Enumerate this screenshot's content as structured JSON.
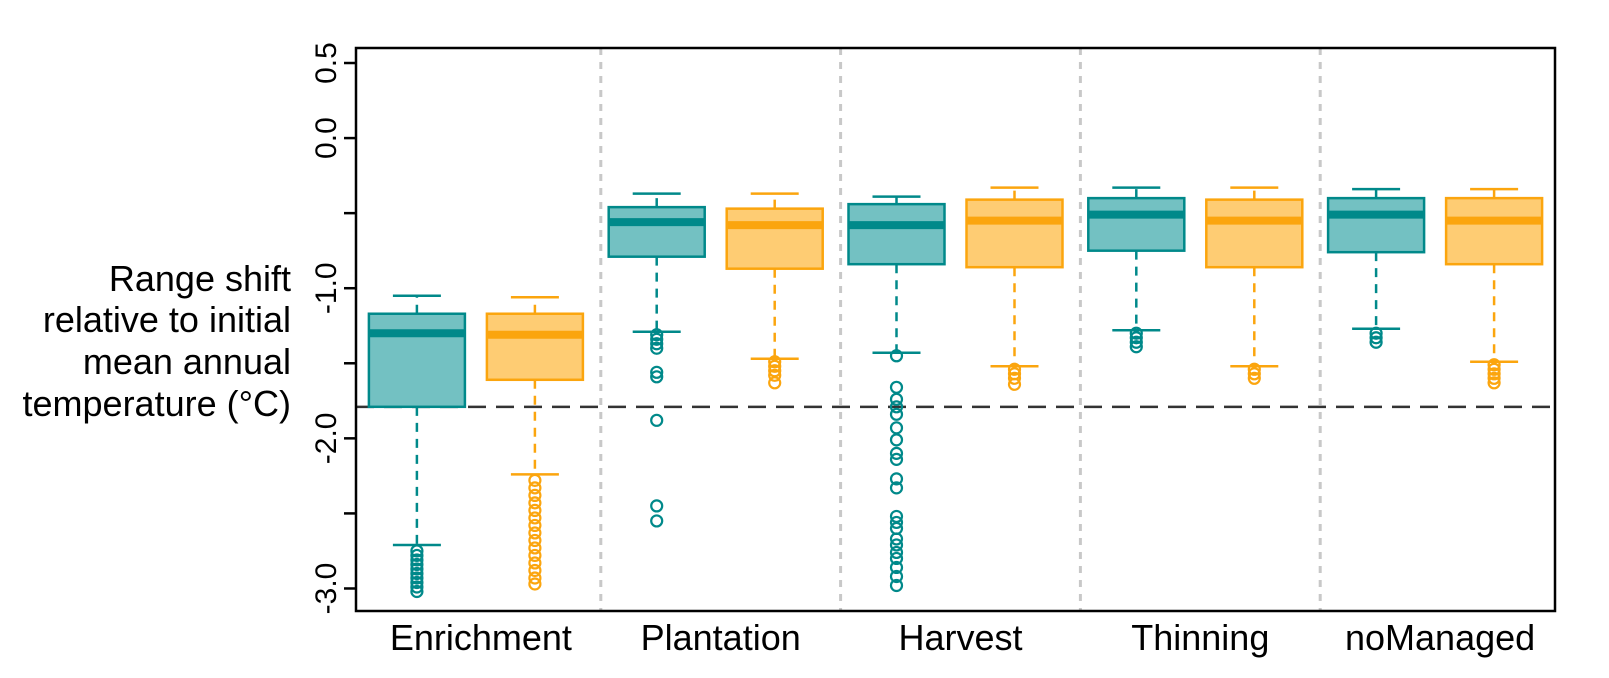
{
  "chart_data": {
    "type": "box",
    "title": "",
    "xlabel": "",
    "ylabel": [
      "Range shift",
      "relative to initial",
      "mean annual",
      "temperature (°C)"
    ],
    "ylim": [
      -3.15,
      0.6
    ],
    "yticks": [
      0.5,
      0.0,
      -1.0,
      -2.0,
      -3.0
    ],
    "ytick_labels": [
      "0.5",
      "0.0",
      "-1.0",
      "-2.0",
      "-3.0"
    ],
    "reference_line": -1.79,
    "categories": [
      "Enrichment",
      "Plantation",
      "Harvest",
      "Thinning",
      "noManaged"
    ],
    "colors": {
      "teal": "#00898A",
      "teal_fill": "#73C1C2",
      "orange": "#FBA50E",
      "orange_fill": "#FECC73"
    },
    "series": [
      {
        "color": "teal",
        "boxes": [
          {
            "whisker_low": -2.71,
            "q1": -1.79,
            "median": -1.3,
            "q3": -1.17,
            "whisker_high": -1.05,
            "outliers": [
              -2.75,
              -2.78,
              -2.81,
              -2.84,
              -2.87,
              -2.9,
              -2.93,
              -2.96,
              -2.99,
              -3.02
            ]
          },
          {
            "whisker_low": -1.29,
            "q1": -0.79,
            "median": -0.56,
            "q3": -0.46,
            "whisker_high": -0.37,
            "outliers": [
              -1.31,
              -1.34,
              -1.37,
              -1.4,
              -1.56,
              -1.59,
              -1.88,
              -2.45,
              -2.55
            ]
          },
          {
            "whisker_low": -1.43,
            "q1": -0.84,
            "median": -0.58,
            "q3": -0.44,
            "whisker_high": -0.39,
            "outliers": [
              -1.45,
              -1.66,
              -1.74,
              -1.79,
              -1.84,
              -1.93,
              -2.01,
              -2.1,
              -2.14,
              -2.27,
              -2.33,
              -2.52,
              -2.56,
              -2.6,
              -2.67,
              -2.71,
              -2.76,
              -2.8,
              -2.86,
              -2.92,
              -2.98
            ]
          },
          {
            "whisker_low": -1.28,
            "q1": -0.75,
            "median": -0.51,
            "q3": -0.4,
            "whisker_high": -0.33,
            "outliers": [
              -1.3,
              -1.33,
              -1.36,
              -1.39
            ]
          },
          {
            "whisker_low": -1.27,
            "q1": -0.76,
            "median": -0.51,
            "q3": -0.4,
            "whisker_high": -0.34,
            "outliers": [
              -1.3,
              -1.33,
              -1.36
            ]
          }
        ]
      },
      {
        "color": "orange",
        "boxes": [
          {
            "whisker_low": -2.24,
            "q1": -1.61,
            "median": -1.31,
            "q3": -1.17,
            "whisker_high": -1.06,
            "outliers": [
              -2.28,
              -2.33,
              -2.38,
              -2.43,
              -2.48,
              -2.53,
              -2.58,
              -2.63,
              -2.68,
              -2.73,
              -2.78,
              -2.83,
              -2.88,
              -2.93,
              -2.97
            ]
          },
          {
            "whisker_low": -1.47,
            "q1": -0.87,
            "median": -0.58,
            "q3": -0.47,
            "whisker_high": -0.37,
            "outliers": [
              -1.49,
              -1.52,
              -1.55,
              -1.58,
              -1.63
            ]
          },
          {
            "whisker_low": -1.52,
            "q1": -0.86,
            "median": -0.55,
            "q3": -0.41,
            "whisker_high": -0.33,
            "outliers": [
              -1.54,
              -1.57,
              -1.6,
              -1.64
            ]
          },
          {
            "whisker_low": -1.52,
            "q1": -0.86,
            "median": -0.55,
            "q3": -0.41,
            "whisker_high": -0.33,
            "outliers": [
              -1.54,
              -1.57,
              -1.6
            ]
          },
          {
            "whisker_low": -1.49,
            "q1": -0.84,
            "median": -0.55,
            "q3": -0.4,
            "whisker_high": -0.34,
            "outliers": [
              -1.51,
              -1.54,
              -1.57,
              -1.6,
              -1.63
            ]
          }
        ]
      }
    ]
  }
}
